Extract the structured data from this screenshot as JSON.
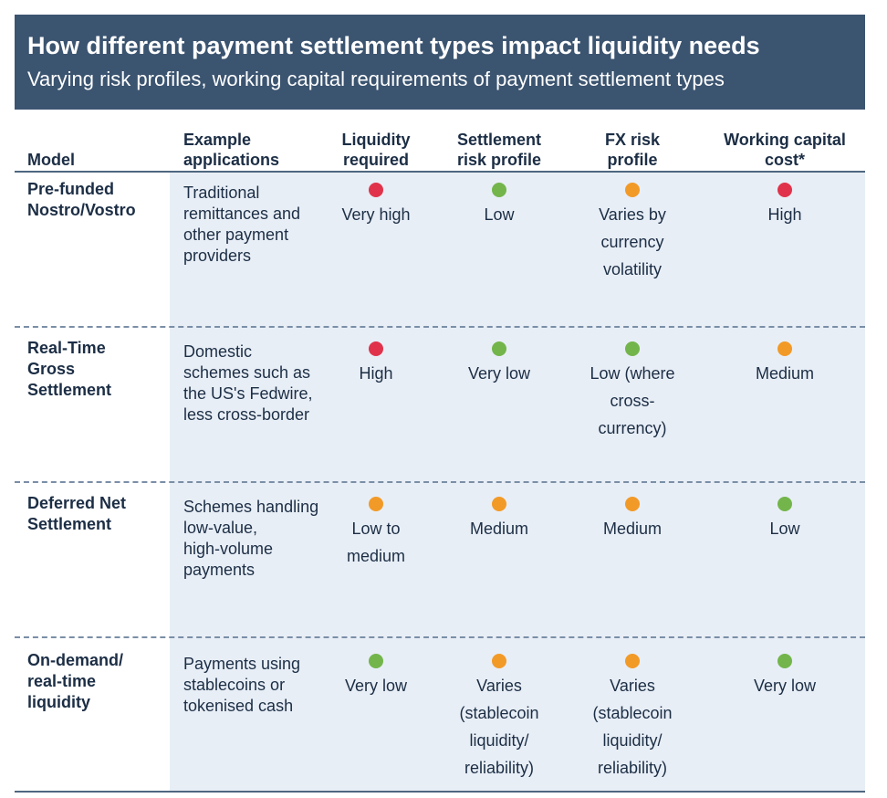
{
  "header": {
    "title": "How different payment settlement types impact liquidity needs",
    "subtitle": "Varying risk profiles, working capital requirements of payment settlement types"
  },
  "columns": {
    "model": "Model",
    "example": "Example\napplications",
    "liquidity": "Liquidity\nrequired",
    "settlement": "Settlement\nrisk profile",
    "fx": "FX risk\nprofile",
    "wc": "Working capital\ncost*"
  },
  "colors": {
    "red": "#e0334b",
    "green": "#73b54b",
    "orange": "#f29a27",
    "header_bg": "#3b5470",
    "shade": "#e8eef6"
  },
  "rows": [
    {
      "model": "Pre-funded\nNostro/Vostro",
      "example": "Traditional\nremittances and\nother payment\nproviders",
      "liquidity": {
        "level": "red",
        "text": "Very high"
      },
      "settlement": {
        "level": "green",
        "text": "Low"
      },
      "fx": {
        "level": "orange",
        "text": "Varies by\ncurrency\nvolatility"
      },
      "wc": {
        "level": "red",
        "text": "High"
      }
    },
    {
      "model": "Real-Time\nGross\nSettlement",
      "example": "Domestic\nschemes such as\nthe US's Fedwire,\nless cross-border",
      "liquidity": {
        "level": "red",
        "text": "High"
      },
      "settlement": {
        "level": "green",
        "text": "Very low"
      },
      "fx": {
        "level": "green",
        "text": "Low (where\ncross-\ncurrency)"
      },
      "wc": {
        "level": "orange",
        "text": "Medium"
      }
    },
    {
      "model": "Deferred Net\nSettlement",
      "example": "Schemes handling\nlow-value,\nhigh-volume\npayments",
      "liquidity": {
        "level": "orange",
        "text": "Low to\nmedium"
      },
      "settlement": {
        "level": "orange",
        "text": "Medium"
      },
      "fx": {
        "level": "orange",
        "text": "Medium"
      },
      "wc": {
        "level": "green",
        "text": "Low"
      }
    },
    {
      "model": "On-demand/\nreal-time\nliquidity",
      "example": "Payments using\nstablecoins or\ntokenised cash",
      "liquidity": {
        "level": "green",
        "text": "Very low"
      },
      "settlement": {
        "level": "orange",
        "text": "Varies\n(stablecoin\nliquidity/\nreliability)"
      },
      "fx": {
        "level": "orange",
        "text": "Varies\n(stablecoin\nliquidity/\nreliability)"
      },
      "wc": {
        "level": "green",
        "text": "Very low"
      }
    }
  ]
}
